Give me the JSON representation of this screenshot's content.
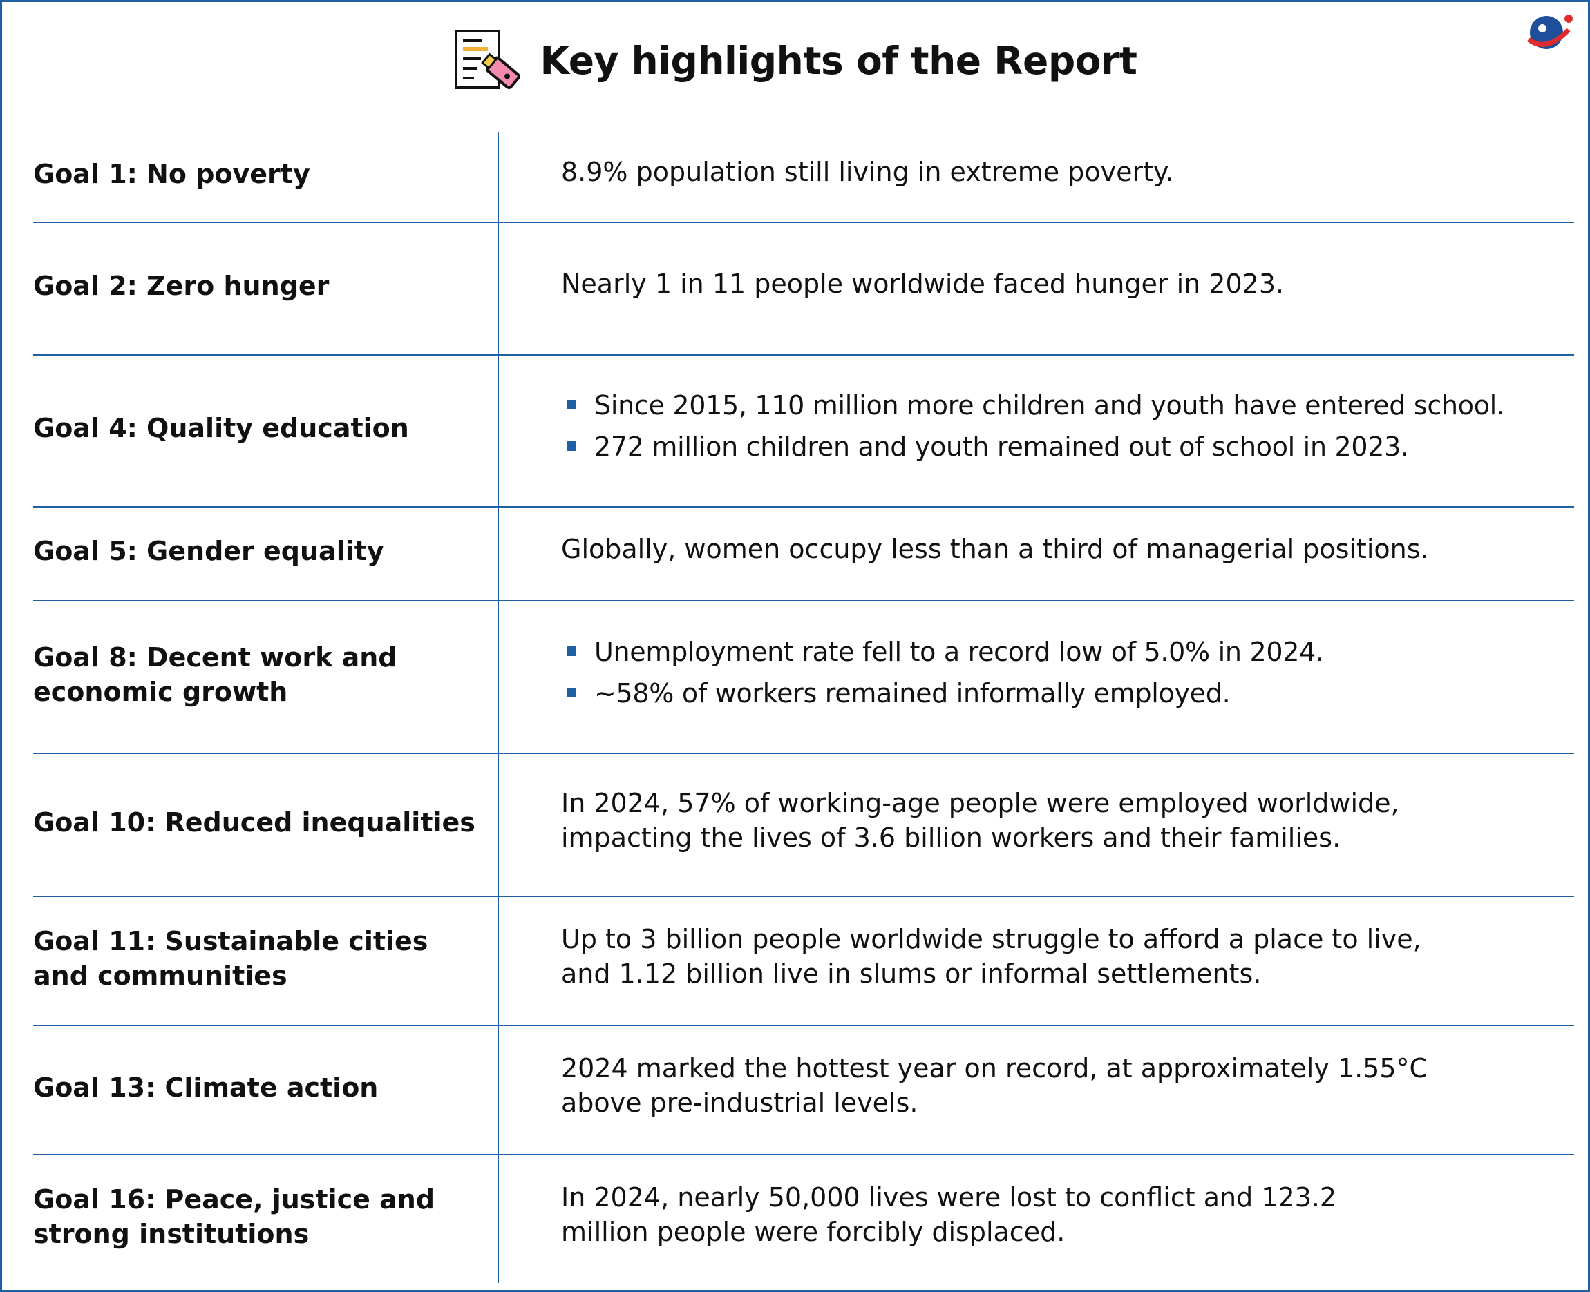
{
  "title": "Key highlights of the Report",
  "rows": [
    {
      "goal": "Goal 1: No poverty",
      "text": "8.9% population still living in extreme poverty."
    },
    {
      "goal": "Goal 2: Zero hunger",
      "text": "Nearly 1 in 11 people worldwide faced hunger in 2023."
    },
    {
      "goal": "Goal 4: Quality education",
      "bullets": [
        "Since 2015, 110 million more children and youth have entered school.",
        "272 million children and youth remained out of school in 2023."
      ]
    },
    {
      "goal": "Goal 5: Gender equality",
      "text": "Globally, women occupy less than a third of managerial positions."
    },
    {
      "goal": "Goal 8: Decent work and economic growth",
      "bullets": [
        "Unemployment rate fell to a record low of 5.0% in 2024.",
        "~58% of workers remained informally employed."
      ]
    },
    {
      "goal": "Goal 10: Reduced inequalities",
      "text": "In 2024, 57% of working-age people were employed worldwide, impacting the lives of 3.6 billion workers and their families."
    },
    {
      "goal": "Goal 11: Sustainable cities and communities",
      "text": "Up to 3 billion people worldwide struggle to afford a place to live, and 1.12 billion live in slums or informal settlements."
    },
    {
      "goal": "Goal 13: Climate action",
      "text": "2024 marked the hottest year on record, at approximately 1.55°C above pre-industrial levels."
    },
    {
      "goal": "Goal 16: Peace, justice and strong institutions",
      "text": "In 2024, nearly 50,000 lives were lost to conflict and 123.2 million people were forcibly displaced."
    }
  ]
}
